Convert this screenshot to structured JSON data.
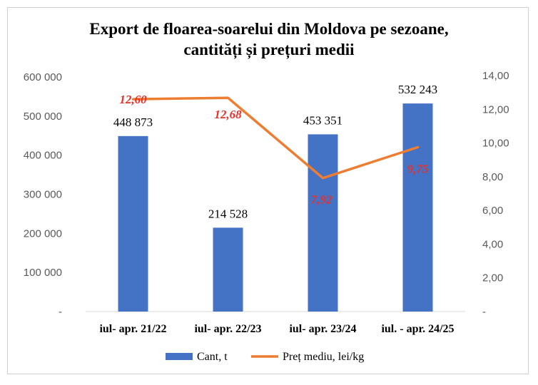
{
  "chart_data": {
    "type": "bar",
    "title_line1": "Export de floarea-soarelui  din  Moldova pe sezoane,",
    "title_line2": "cantități și prețuri medii",
    "categories": [
      "iul- apr. 21/22",
      "iul- apr. 22/23",
      "iul- apr. 23/24",
      "iul. - apr. 24/25"
    ],
    "series": [
      {
        "name": "Cant, t",
        "type": "bar",
        "axis": "left",
        "color": "#4472c4",
        "values": [
          448873,
          214528,
          453351,
          532243
        ],
        "labels": [
          "448 873",
          "214 528",
          "453 351",
          "532 243"
        ]
      },
      {
        "name": "Preț mediu, lei/kg",
        "type": "line",
        "axis": "right",
        "color": "#ed7d31",
        "label_color": "#e8302a",
        "values": [
          12.6,
          12.68,
          7.92,
          9.75
        ],
        "labels": [
          "12,60",
          "12,68",
          "7,92",
          "9,75"
        ]
      }
    ],
    "y_left": {
      "min": 0,
      "max": 600000,
      "ticks": [
        0,
        100000,
        200000,
        300000,
        400000,
        500000,
        600000
      ],
      "tick_labels": [
        "-",
        "100 000",
        "200 000",
        "300 000",
        "400 000",
        "500 000",
        "600 000"
      ]
    },
    "y_right": {
      "min": 0,
      "max": 14,
      "ticks": [
        0,
        2,
        4,
        6,
        8,
        10,
        12,
        14
      ],
      "tick_labels": [
        "-",
        "2,00",
        "4,00",
        "6,00",
        "8,00",
        "10,00",
        "12,00",
        "14,00"
      ]
    },
    "grid": false,
    "legend_position": "bottom"
  }
}
